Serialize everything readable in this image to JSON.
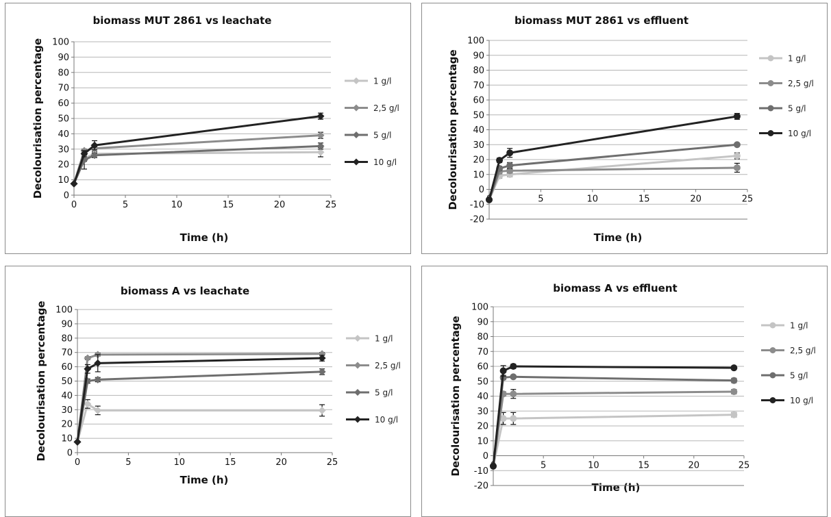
{
  "chart_data": [
    {
      "type": "line",
      "title": "biomass MUT 2861  vs leachate",
      "xlabel": "Time (h)",
      "ylabel": "Decolourisation percentage",
      "xlim": [
        0,
        25
      ],
      "ylim": [
        0,
        100
      ],
      "xticks": [
        "0",
        "5",
        "10",
        "15",
        "20",
        "25"
      ],
      "yticks": [
        "0",
        "10",
        "20",
        "30",
        "40",
        "50",
        "60",
        "70",
        "80",
        "90",
        "100"
      ],
      "marker": "diamond",
      "legend_position": "right",
      "x": [
        0,
        1,
        2,
        24
      ],
      "series": [
        {
          "name": "1 g/l",
          "color": "#c4c4c4",
          "values": [
            7.5,
            24,
            27,
            28
          ],
          "err": [
            0,
            2,
            1.5,
            3
          ]
        },
        {
          "name": "2,5 g/l",
          "color": "#8c8c8c",
          "values": [
            7.5,
            29,
            30.5,
            39
          ],
          "err": [
            0,
            1,
            1,
            2
          ]
        },
        {
          "name": "5 g/l",
          "color": "#6e6e6e",
          "values": [
            7.5,
            23,
            26,
            32
          ],
          "err": [
            0,
            6,
            1.5,
            2
          ]
        },
        {
          "name": "10 g/l",
          "color": "#222222",
          "values": [
            7.5,
            27,
            32.5,
            51.5
          ],
          "err": [
            0,
            2,
            3,
            2
          ]
        }
      ]
    },
    {
      "type": "line",
      "title": "biomass MUT 2861 vs effluent",
      "xlabel": "Time (h)",
      "ylabel": "Decolourisation percentage",
      "xlim": [
        0,
        25
      ],
      "ylim": [
        -20,
        100
      ],
      "xticks": [
        "0",
        "5",
        "10",
        "15",
        "20",
        "25"
      ],
      "yticks": [
        "-20",
        "-10",
        "0",
        "10",
        "20",
        "30",
        "40",
        "50",
        "60",
        "70",
        "80",
        "90",
        "100"
      ],
      "marker": "circle",
      "legend_position": "right",
      "x": [
        0,
        1,
        2,
        24
      ],
      "series": [
        {
          "name": "1 g/l",
          "color": "#c4c4c4",
          "values": [
            -7,
            9,
            10,
            22.5
          ],
          "err": [
            0,
            1.5,
            1.5,
            2
          ]
        },
        {
          "name": "2,5 g/l",
          "color": "#8c8c8c",
          "values": [
            -7,
            12,
            12.5,
            14.5
          ],
          "err": [
            0,
            1.5,
            1.5,
            3
          ]
        },
        {
          "name": "5 g/l",
          "color": "#6e6e6e",
          "values": [
            -7,
            14,
            16,
            30
          ],
          "err": [
            0,
            1.5,
            2,
            1
          ]
        },
        {
          "name": "10 g/l",
          "color": "#222222",
          "values": [
            -7,
            19.5,
            24.5,
            49
          ],
          "err": [
            0,
            1.5,
            3,
            2
          ]
        }
      ]
    },
    {
      "type": "line",
      "title": "biomass A vs leachate",
      "xlabel": "Time (h)",
      "ylabel": "Decolourisation percentage",
      "xlim": [
        0,
        25
      ],
      "ylim": [
        0,
        100
      ],
      "xticks": [
        "0",
        "5",
        "10",
        "15",
        "20",
        "25"
      ],
      "yticks": [
        "0",
        "10",
        "20",
        "30",
        "40",
        "50",
        "60",
        "70",
        "80",
        "90",
        "100"
      ],
      "marker": "diamond",
      "legend_position": "right",
      "x": [
        0,
        1,
        2,
        24
      ],
      "series": [
        {
          "name": "1 g/l",
          "color": "#c4c4c4",
          "values": [
            7.5,
            34,
            29.5,
            29.5
          ],
          "err": [
            0,
            3,
            3,
            4
          ]
        },
        {
          "name": "2,5 g/l",
          "color": "#8c8c8c",
          "values": [
            7.5,
            66,
            68.5,
            69
          ],
          "err": [
            0,
            1,
            1,
            1
          ]
        },
        {
          "name": "5 g/l",
          "color": "#6e6e6e",
          "values": [
            7.5,
            50,
            51,
            56.5
          ],
          "err": [
            0,
            1.5,
            1.5,
            2
          ]
        },
        {
          "name": "10 g/l",
          "color": "#222222",
          "values": [
            7.5,
            58.5,
            62.5,
            66
          ],
          "err": [
            0,
            3,
            6,
            2
          ]
        }
      ]
    },
    {
      "type": "line",
      "title": "biomass A vs effluent",
      "xlabel": "Time (h)",
      "ylabel": "Decolourisation percentage",
      "xlim": [
        0,
        25
      ],
      "ylim": [
        -20,
        100
      ],
      "xticks": [
        "0",
        "5",
        "10",
        "15",
        "20",
        "25"
      ],
      "yticks": [
        "-20",
        "-10",
        "0",
        "10",
        "20",
        "30",
        "40",
        "50",
        "60",
        "70",
        "80",
        "90",
        "100"
      ],
      "marker": "circle",
      "legend_position": "right",
      "x": [
        0,
        1,
        2,
        24
      ],
      "series": [
        {
          "name": "1 g/l",
          "color": "#c4c4c4",
          "values": [
            -7,
            25,
            25,
            27.5
          ],
          "err": [
            0,
            4,
            4,
            1.5
          ]
        },
        {
          "name": "2,5 g/l",
          "color": "#8c8c8c",
          "values": [
            -7,
            41.5,
            41.5,
            43
          ],
          "err": [
            0,
            1.5,
            3,
            1.5
          ]
        },
        {
          "name": "5 g/l",
          "color": "#6e6e6e",
          "values": [
            -7,
            52.5,
            53,
            50.5
          ],
          "err": [
            0,
            1.5,
            1,
            1.5
          ]
        },
        {
          "name": "10 g/l",
          "color": "#222222",
          "values": [
            -7,
            57,
            60,
            59
          ],
          "err": [
            0,
            3.5,
            1.5,
            1
          ]
        }
      ]
    }
  ]
}
